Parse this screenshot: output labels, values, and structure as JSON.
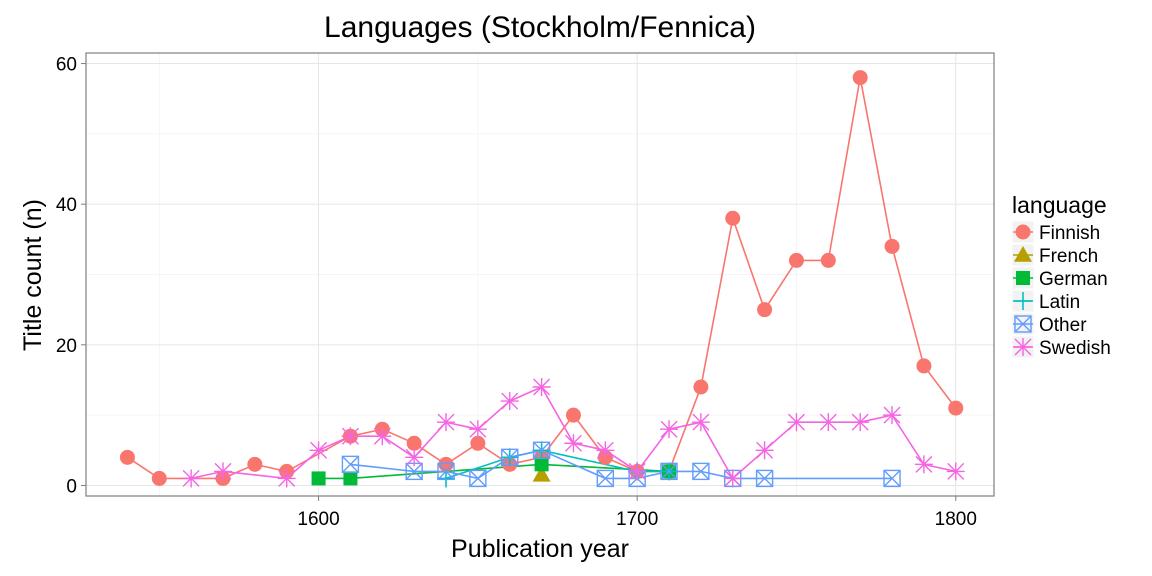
{
  "chart_data": {
    "type": "line",
    "title": "Languages (Stockholm/Fennica)",
    "xlabel": "Publication year",
    "ylabel": "Title count (n)",
    "xlim": [
      1527,
      1812
    ],
    "ylim": [
      -1.5,
      61.5
    ],
    "xticks": [
      1600,
      1700,
      1800
    ],
    "yticks": [
      0,
      20,
      40,
      60
    ],
    "grid": true,
    "legend": {
      "title": "language",
      "position": "right"
    },
    "series": [
      {
        "name": "Finnish",
        "color": "#F8766D",
        "marker": "circle",
        "x": [
          1540,
          1550,
          1570,
          1580,
          1590,
          1610,
          1620,
          1630,
          1640,
          1650,
          1660,
          1670,
          1680,
          1690,
          1700,
          1710,
          1720,
          1730,
          1740,
          1750,
          1760,
          1770,
          1780,
          1790,
          1800
        ],
        "y": [
          4,
          1,
          1,
          3,
          2,
          7,
          8,
          6,
          3,
          6,
          3,
          4,
          10,
          4,
          2,
          2,
          14,
          38,
          25,
          32,
          32,
          58,
          34,
          17,
          11
        ]
      },
      {
        "name": "French",
        "color": "#B79F00",
        "marker": "triangle",
        "x": [
          1670
        ],
        "y": [
          1.5
        ]
      },
      {
        "name": "German",
        "color": "#00BA38",
        "marker": "square",
        "x": [
          1600,
          1610,
          1670,
          1710
        ],
        "y": [
          1,
          1,
          3,
          2
        ]
      },
      {
        "name": "Latin",
        "color": "#00BFC4",
        "marker": "plus",
        "x": [
          1640,
          1660,
          1670,
          1700,
          1710
        ],
        "y": [
          1,
          4,
          5,
          2,
          2
        ]
      },
      {
        "name": "Other",
        "color": "#619CFF",
        "marker": "boxx",
        "x": [
          1610,
          1630,
          1640,
          1650,
          1660,
          1670,
          1690,
          1700,
          1710,
          1720,
          1730,
          1740,
          1780
        ],
        "y": [
          3,
          2,
          2,
          1,
          4,
          5,
          1,
          1,
          2,
          2,
          1,
          1,
          1
        ]
      },
      {
        "name": "Swedish",
        "color": "#F564E3",
        "marker": "asterisk",
        "x": [
          1560,
          1570,
          1590,
          1600,
          1610,
          1620,
          1630,
          1640,
          1650,
          1660,
          1670,
          1680,
          1690,
          1700,
          1710,
          1720,
          1730,
          1740,
          1750,
          1760,
          1770,
          1780,
          1790,
          1800
        ],
        "y": [
          1,
          2,
          1,
          5,
          7,
          7,
          4,
          9,
          8,
          12,
          14,
          6,
          5,
          2,
          8,
          9,
          1,
          5,
          9,
          9,
          9,
          10,
          3,
          2
        ]
      }
    ]
  }
}
